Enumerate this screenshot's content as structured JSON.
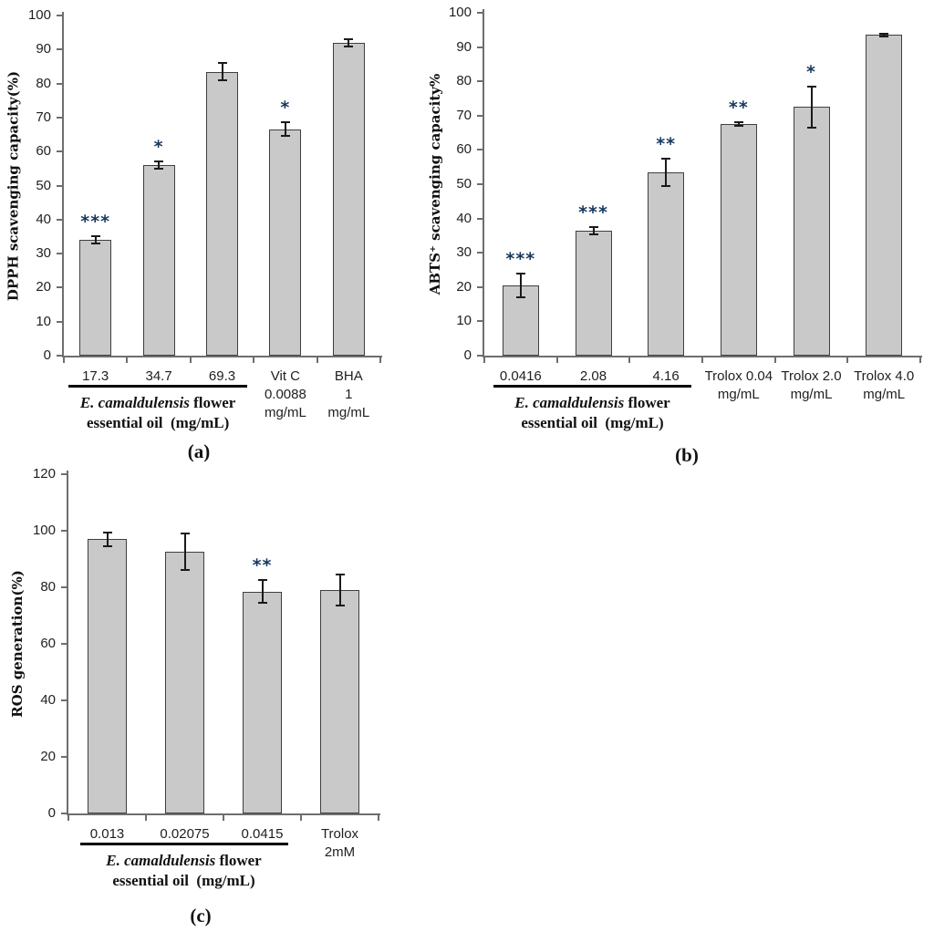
{
  "figure": {
    "background": "#ffffff",
    "description": "Three-panel bar chart figure with significance asterisks"
  },
  "colors": {
    "bar_fill": "#c9c9c9",
    "bar_border": "#3f3f3f",
    "error_bar": "#1a1a1a",
    "axis_line": "#6e6e6e",
    "tick_label": "#1f1f1f",
    "star": "#17375d",
    "underline": "#000000"
  },
  "chart_data": [
    {
      "id": "a",
      "type": "bar",
      "caption": "(a)",
      "ylabel": "DPPH scavenging capacity(%)",
      "ylim": [
        0,
        100
      ],
      "ytick_step": 10,
      "grid": false,
      "legend": null,
      "categories": [
        [
          "17.3"
        ],
        [
          "34.7"
        ],
        [
          "69.3"
        ],
        [
          "Vit C",
          "0.0088",
          "mg/mL"
        ],
        [
          "BHA",
          "1",
          "mg/mL"
        ]
      ],
      "values": [
        34,
        56,
        83.5,
        66.5,
        92
      ],
      "errors": [
        1,
        1,
        2.5,
        2,
        1
      ],
      "significance": [
        "***",
        "*",
        "",
        "*",
        ""
      ],
      "group_label": {
        "line1_italic": "E. camaldulensis",
        "line1_rest": " flower",
        "line2": "essential oil  (mg/mL)",
        "span_categories": [
          0,
          2
        ]
      }
    },
    {
      "id": "b",
      "type": "bar",
      "caption": "(b)",
      "ylabel": "ABTS⁺ scavenging capacity%",
      "ylim": [
        0,
        100
      ],
      "ytick_step": 10,
      "grid": false,
      "legend": null,
      "categories": [
        [
          "0.0416"
        ],
        [
          "2.08"
        ],
        [
          "4.16"
        ],
        [
          "Trolox 0.04",
          "mg/mL"
        ],
        [
          "Trolox 2.0",
          "mg/mL"
        ],
        [
          "Trolox 4.0",
          "mg/mL"
        ]
      ],
      "values": [
        20.5,
        36.5,
        53.5,
        67.5,
        72.5,
        93.5
      ],
      "errors": [
        3.5,
        1,
        4,
        0.5,
        6,
        0.5
      ],
      "significance": [
        "***",
        "***",
        "**",
        "**",
        "*",
        ""
      ],
      "group_label": {
        "line1_italic": "E. camaldulensis",
        "line1_rest": " flower",
        "line2": "essential oil  (mg/mL)",
        "span_categories": [
          0,
          2
        ]
      }
    },
    {
      "id": "c",
      "type": "bar",
      "caption": "(c)",
      "ylabel": "ROS generation(%)",
      "ylim": [
        0,
        120
      ],
      "ytick_step": 20,
      "grid": false,
      "legend": null,
      "categories": [
        [
          "0.013"
        ],
        [
          "0.02075"
        ],
        [
          "0.0415"
        ],
        [
          "Trolox",
          "2mM"
        ]
      ],
      "values": [
        97,
        92.5,
        78.5,
        79
      ],
      "errors": [
        2.5,
        6.5,
        4,
        5.5
      ],
      "significance": [
        "",
        "",
        "**",
        ""
      ],
      "group_label": {
        "line1_italic": "E. camaldulensis",
        "line1_rest": " flower",
        "line2": "essential oil  (mg/mL)",
        "span_categories": [
          0,
          2
        ]
      }
    }
  ]
}
